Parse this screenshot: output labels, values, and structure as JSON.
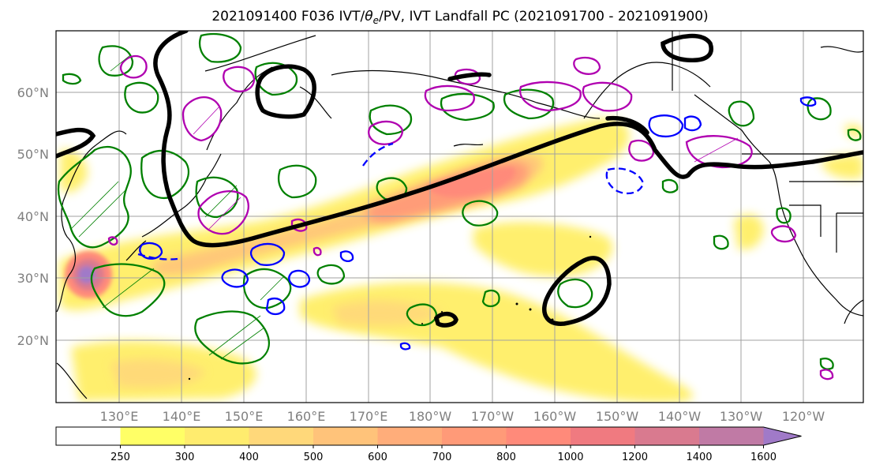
{
  "chart_data": {
    "type": "map-contour",
    "title": "2021091400 F036 IVT/θe/PV, IVT Landfall PC (2021091700 - 2021091900)",
    "title_parts": {
      "pre": "2021091400 F036 IVT/",
      "theta": "θ",
      "theta_sub": "e",
      "post": "/PV, IVT Landfall PC (2021091700 - 2021091900)"
    },
    "lat_ticks": [
      "20°N",
      "30°N",
      "40°N",
      "50°N",
      "60°N"
    ],
    "lon_ticks": [
      "130°E",
      "140°E",
      "150°E",
      "160°E",
      "170°E",
      "180°W",
      "170°W",
      "160°W",
      "150°W",
      "140°W",
      "130°W",
      "120°W"
    ],
    "lat_range": [
      10,
      70
    ],
    "lon_range": [
      120,
      250
    ],
    "grid": true,
    "colorbar": {
      "orientation": "horizontal",
      "extend": "max",
      "levels": [
        250,
        300,
        400,
        500,
        600,
        700,
        800,
        1000,
        1200,
        1400,
        1600
      ],
      "colors": [
        "#ffff66",
        "#ffec6e",
        "#ffd87a",
        "#ffc37a",
        "#ffad7a",
        "#ff9a78",
        "#ff8a7a",
        "#f07a80",
        "#d97a8f",
        "#c07aa5",
        "#a07ac8"
      ]
    },
    "contour_colors": {
      "landfall_pc": "#000000",
      "theta_e": "#008000",
      "pv_positive": "#b000b0",
      "pv_negative": "#0000ff"
    }
  }
}
